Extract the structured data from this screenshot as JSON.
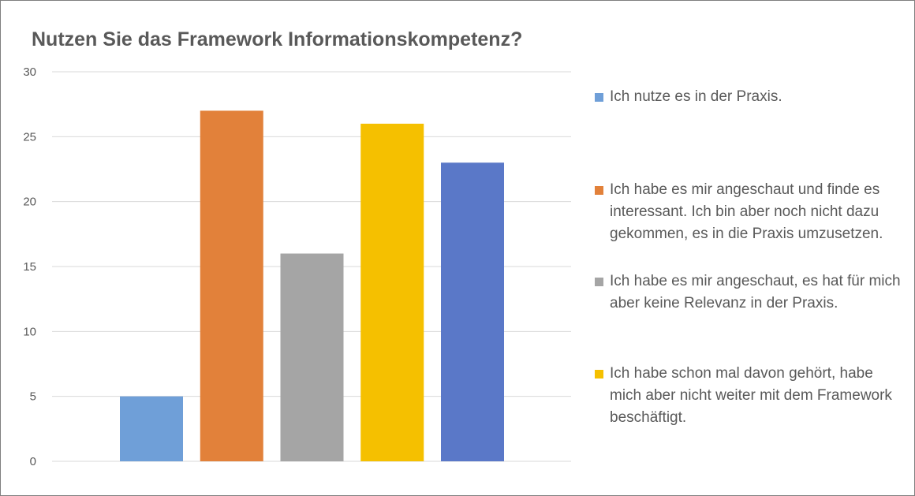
{
  "chart_data": {
    "type": "bar",
    "title": "Nutzen Sie das Framework Informationskompetenz?",
    "xlabel": "",
    "ylabel": "",
    "ylim": [
      0,
      30
    ],
    "yticks": [
      "0",
      "5",
      "10",
      "15",
      "20",
      "25",
      "30"
    ],
    "grid": true,
    "legend_position": "right",
    "series": [
      {
        "name": "Ich nutze es in der Praxis.",
        "value": 5,
        "color": "#6f9fd8"
      },
      {
        "name": "Ich habe es mir angeschaut und finde es interessant. Ich bin aber noch nicht dazu gekommen, es in die Praxis umzusetzen.",
        "value": 27,
        "color": "#e2813a"
      },
      {
        "name": "Ich habe es mir angeschaut, es hat für mich aber keine Relevanz in der Praxis.",
        "value": 16,
        "color": "#a5a5a5"
      },
      {
        "name": "Ich habe schon mal davon gehört, habe mich aber nicht weiter mit dem Framework beschäftigt.",
        "value": 26,
        "color": "#f5c000"
      },
      {
        "name": "",
        "value": 23,
        "color": "#5a78c8"
      }
    ]
  }
}
